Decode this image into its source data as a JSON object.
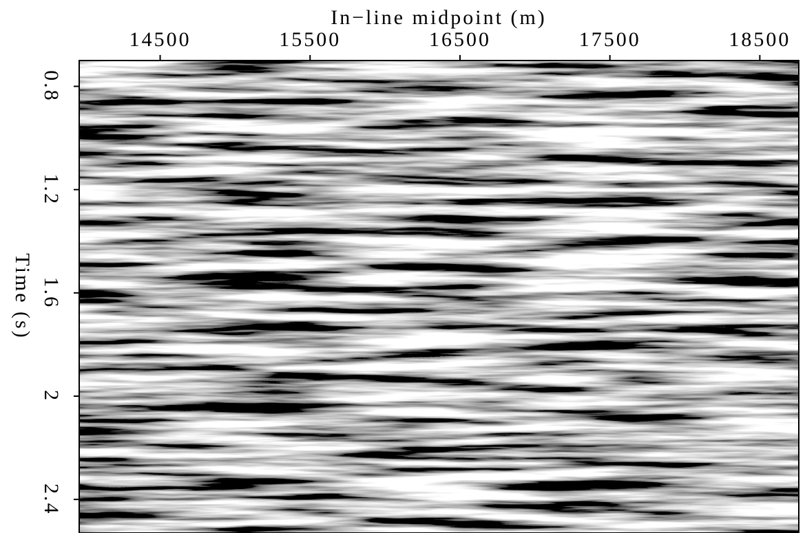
{
  "chart_data": {
    "type": "seismic",
    "title": "In−line midpoint (m)",
    "ylabel": "Time (s)",
    "xlim": [
      13960,
      18760
    ],
    "xticks": [
      14500,
      15500,
      16500,
      17500,
      18500
    ],
    "ylim": [
      0.7,
      2.53
    ],
    "yticks": [
      0.8,
      1.2,
      1.6,
      2,
      2.4
    ],
    "colormap": "gray"
  }
}
